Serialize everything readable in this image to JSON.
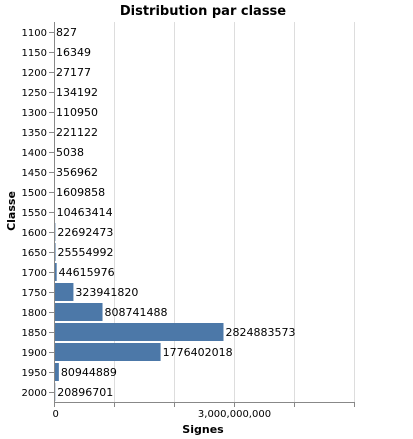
{
  "chart_data": {
    "type": "bar",
    "orientation": "horizontal",
    "title": "Distribution par classe",
    "xlabel": "Signes",
    "ylabel": "Classe",
    "xlim": [
      0,
      5000000000
    ],
    "x_ticks": [
      0,
      1000000000,
      2000000000,
      3000000000,
      4000000000,
      5000000000
    ],
    "x_tick_labels": [
      "0",
      "",
      "",
      "3,000,000,000",
      "",
      ""
    ],
    "grid": true,
    "bar_color": "#4c78a8",
    "categories": [
      "1100",
      "1150",
      "1200",
      "1250",
      "1300",
      "1350",
      "1400",
      "1450",
      "1500",
      "1550",
      "1600",
      "1650",
      "1700",
      "1750",
      "1800",
      "1850",
      "1900",
      "1950",
      "2000"
    ],
    "values": [
      827,
      16349,
      27177,
      134192,
      110950,
      221122,
      5038,
      356962,
      1609858,
      10463414,
      22692473,
      25554992,
      44615976,
      323941820,
      808741488,
      2824883573,
      1776402018,
      80944889,
      20896701
    ]
  }
}
